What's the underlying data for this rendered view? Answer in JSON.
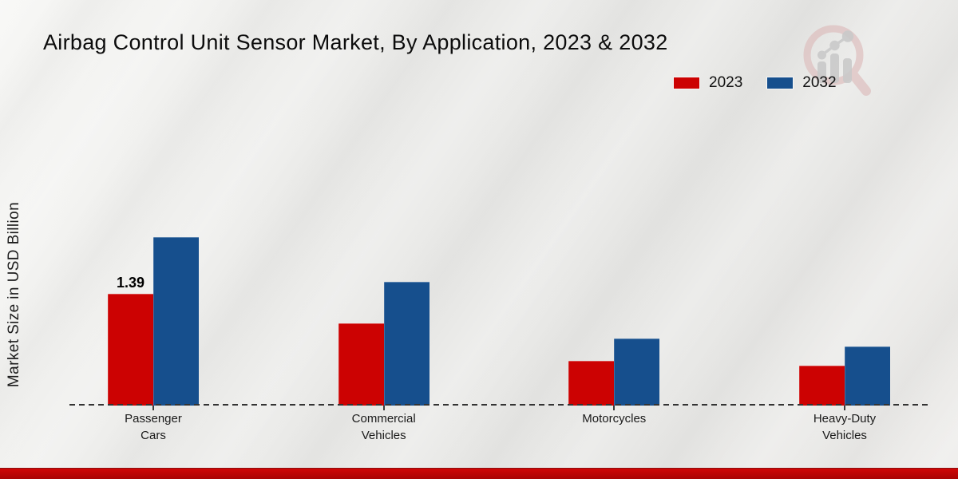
{
  "title": "Airbag Control Unit Sensor Market, By Application, 2023 & 2032",
  "ylabel": "Market Size in USD Billion",
  "legend": [
    {
      "label": "2023",
      "color": "#cc0202"
    },
    {
      "label": "2032",
      "color": "#164f8d"
    }
  ],
  "colors": {
    "accent_red": "#cc0202",
    "accent_blue": "#164f8d",
    "footer_red": "#b80505",
    "axis": "#343434"
  },
  "watermark_icon": "magnifier-bar-chart-logo",
  "footer": {
    "label": ""
  },
  "chart_data": {
    "type": "bar",
    "title": "Airbag Control Unit Sensor Market, By Application, 2023 & 2032",
    "xlabel": "",
    "ylabel": "Market Size in USD Billion",
    "categories": [
      "Passenger Cars",
      "Commercial Vehicles",
      "Motorcycles",
      "Heavy-Duty Vehicles"
    ],
    "series": [
      {
        "name": "2023",
        "color": "#cc0202",
        "values": [
          1.39,
          1.02,
          0.56,
          0.5
        ]
      },
      {
        "name": "2032",
        "color": "#164f8d",
        "values": [
          2.1,
          1.54,
          0.84,
          0.74
        ]
      }
    ],
    "annotations": [
      {
        "series": 0,
        "category": 0,
        "text": "1.39"
      }
    ],
    "ylim": [
      0,
      2.5
    ],
    "grid": false,
    "baseline": "dashed",
    "legend_position": "upper right"
  }
}
